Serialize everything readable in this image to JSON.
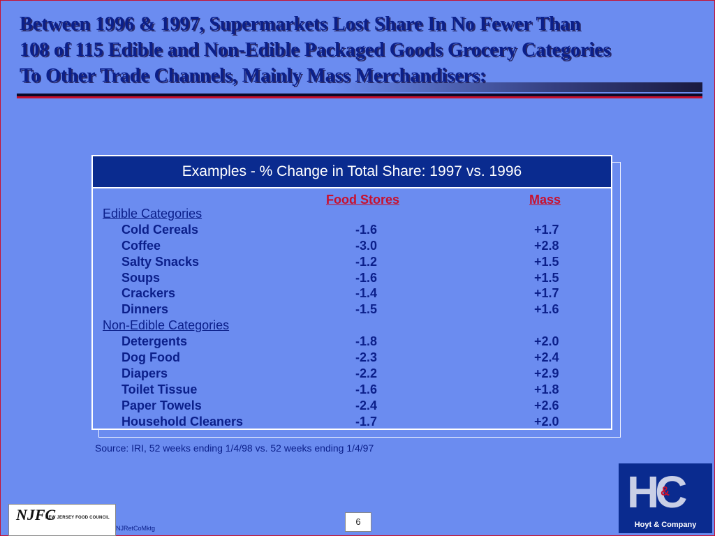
{
  "title": {
    "line1": "Between 1996 & 1997, Supermarkets Lost Share In No Fewer Than",
    "line2": "108 of 115 Edible and Non-Edible Packaged Goods Grocery Categories",
    "line3": "To Other Trade Channels, Mainly Mass Merchandisers:"
  },
  "table": {
    "header": "Examples - % Change in Total Share:  1997 vs. 1996",
    "col_food": "Food Stores",
    "col_mass": "Mass",
    "rows": [
      {
        "type": "section",
        "name": "Edible Categories"
      },
      {
        "type": "item",
        "name": "Cold Cereals",
        "food": "-1.6",
        "mass": "+1.7"
      },
      {
        "type": "item",
        "name": "Coffee",
        "food": "-3.0",
        "mass": "+2.8"
      },
      {
        "type": "item",
        "name": "Salty Snacks",
        "food": "-1.2",
        "mass": "+1.5"
      },
      {
        "type": "item",
        "name": "Soups",
        "food": "-1.6",
        "mass": "+1.5"
      },
      {
        "type": "item",
        "name": "Crackers",
        "food": "-1.4",
        "mass": "+1.7"
      },
      {
        "type": "item",
        "name": "Dinners",
        "food": "-1.5",
        "mass": "+1.6"
      },
      {
        "type": "section",
        "name": "Non-Edible Categories"
      },
      {
        "type": "item",
        "name": "Detergents",
        "food": "-1.8",
        "mass": "+2.0"
      },
      {
        "type": "item",
        "name": "Dog Food",
        "food": "-2.3",
        "mass": "+2.4"
      },
      {
        "type": "item",
        "name": "Diapers",
        "food": "-2.2",
        "mass": "+2.9"
      },
      {
        "type": "item",
        "name": "Toilet Tissue",
        "food": "-1.6",
        "mass": "+1.8"
      },
      {
        "type": "item",
        "name": "Paper Towels",
        "food": "-2.4",
        "mass": "+2.6"
      },
      {
        "type": "item",
        "name": "Household Cleaners",
        "food": "-1.7",
        "mass": "+2.0"
      }
    ]
  },
  "source": "Source:  IRI, 52 weeks ending 1/4/98 vs. 52 weeks ending 1/4/97",
  "footer": {
    "njfc_mark": "NJFC",
    "njfc_name": "NEW JERSEY FOOD COUNCIL",
    "code": "NJRetCoMktg",
    "page": "6",
    "hc_letters": "HC",
    "hc_amp": "&",
    "hc_name": "Hoyt & Company"
  },
  "colors": {
    "background": "#6b8cf0",
    "navy": "#0a2b8f",
    "red": "#c8102e",
    "text": "#0b1f8a"
  }
}
